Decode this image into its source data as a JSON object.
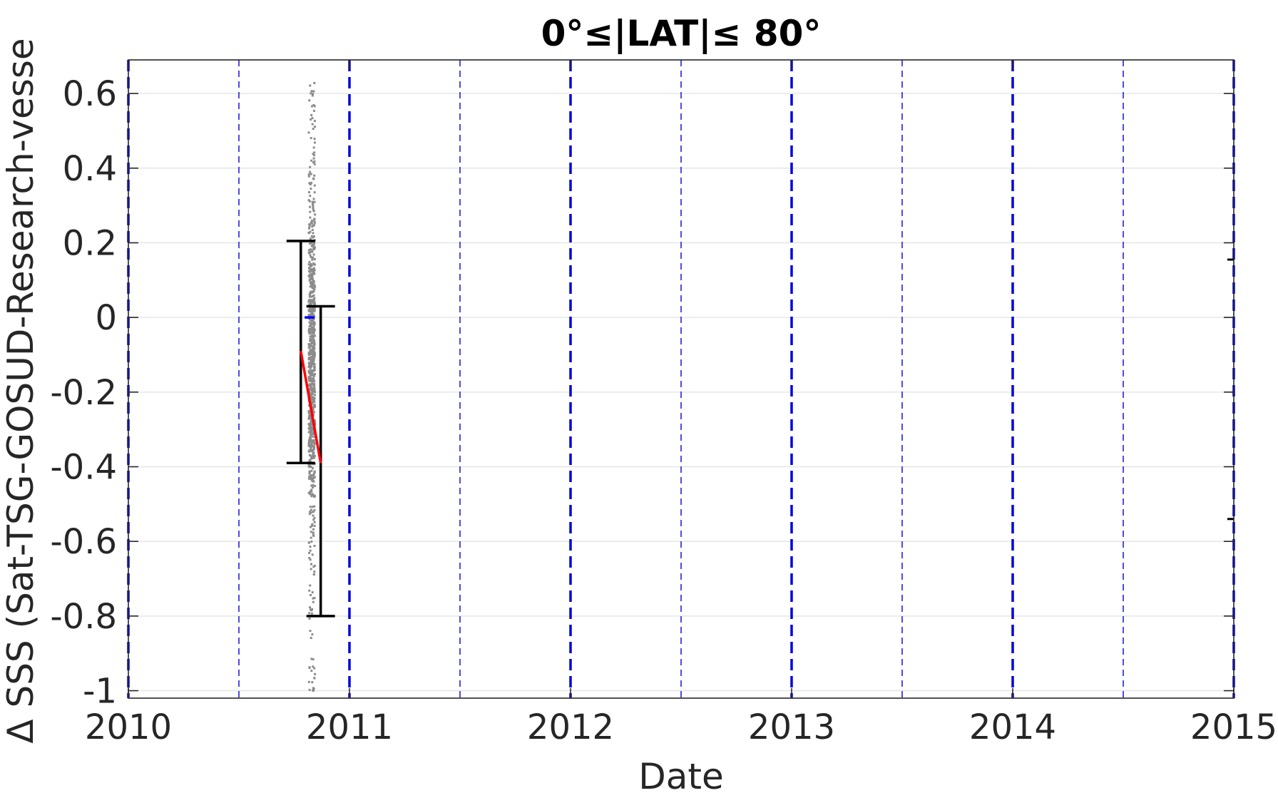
{
  "chart_data": {
    "type": "scatter",
    "title": "0°≤|LAT|≤ 80°",
    "xlabel": "Date",
    "ylabel": "Δ SSS (Sat-TSG-GOSUD-Research-vesse",
    "xlim": [
      2010,
      2015
    ],
    "ylim": [
      -1.02,
      0.69
    ],
    "xticks": [
      2010,
      2011,
      2012,
      2013,
      2014,
      2015
    ],
    "xtick_labels": [
      "2010",
      "2011",
      "2012",
      "2013",
      "2014",
      "2015"
    ],
    "yticks": [
      0.6,
      0.4,
      0.2,
      0,
      -0.2,
      -0.4,
      -0.6,
      -0.8,
      -1
    ],
    "ytick_labels": [
      "0.6",
      "0.4",
      "0.2",
      "0",
      "-0.2",
      "-0.4",
      "-0.6",
      "-0.8",
      "-1"
    ],
    "grid": "horizontal",
    "year_boundaries_thick_dashed": [
      2010,
      2011,
      2012,
      2013,
      2014,
      2015
    ],
    "half_year_lines_thin_dashed": [
      2010.5,
      2011.5,
      2012.5,
      2013.5,
      2014.5
    ],
    "scatter_cloud": {
      "x_range": [
        2010.81,
        2010.85
      ],
      "y_range": [
        -1.0,
        0.63
      ]
    },
    "error_bars": [
      {
        "x": 2010.78,
        "center": -0.095,
        "low": -0.39,
        "high": 0.205
      },
      {
        "x": 2010.87,
        "center": -0.385,
        "low": -0.8,
        "high": 0.03
      }
    ],
    "trend_line": {
      "x": [
        2010.78,
        2010.87
      ],
      "y": [
        -0.09,
        -0.39
      ]
    },
    "mean_marker": {
      "x": 2010.82,
      "y": 0.0
    },
    "edge_markers": [
      {
        "x": 2015,
        "y": 0.155
      },
      {
        "x": 2015,
        "y": -0.54
      }
    ],
    "colors": {
      "scatter": "#8c8c8c",
      "year_lines": "#0000dd",
      "error_bars": "#000000",
      "trend": "#ff0000",
      "mean_marker": "#0000ff",
      "grid": "#e6e6e6"
    }
  }
}
